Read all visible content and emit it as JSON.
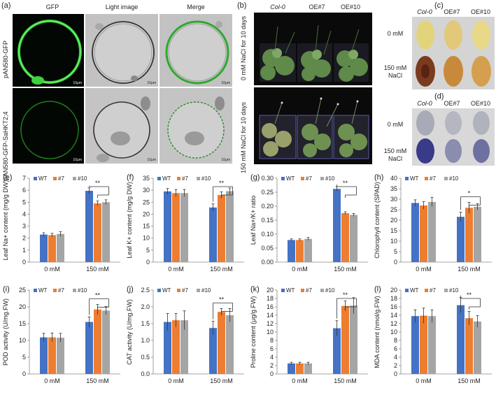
{
  "panel_a": {
    "label": "(a)",
    "col_headers": [
      "GFP",
      "Light image",
      "Merge"
    ],
    "row_labels": [
      "pAN580-GFP",
      "pAN580-GFP-SaHKT2;4"
    ],
    "scale_label": "10μm"
  },
  "panel_b": {
    "label": "(b)",
    "col_headers": [
      "Col-0",
      "OE#7",
      "OE#10"
    ],
    "row_labels": [
      "0 mM NaCl for 10 days",
      "150 mM NaCl for 10 days"
    ]
  },
  "panel_c": {
    "label": "(c)",
    "col_headers": [
      "Col-0",
      "OE#7",
      "OE#10"
    ],
    "row_labels": [
      "0 mM",
      "150 mM",
      "NaCl"
    ]
  },
  "panel_d": {
    "label": "(d)",
    "col_headers": [
      "Col-0",
      "OE#7",
      "OE#10"
    ],
    "row_labels": [
      "0 mM",
      "150 mM",
      "NaCl"
    ]
  },
  "colors": {
    "WT": "#4472C4",
    "#7": "#ED7D31",
    "#10": "#A5A5A5"
  },
  "chart_data": [
    {
      "id": "e",
      "label": "(e)",
      "type": "bar",
      "categories": [
        "0 mM",
        "150 mM"
      ],
      "series": [
        {
          "name": "WT",
          "values": [
            2.3,
            5.95
          ],
          "err": [
            0.15,
            0.25
          ]
        },
        {
          "name": "#7",
          "values": [
            2.25,
            4.9
          ],
          "err": [
            0.15,
            0.2
          ]
        },
        {
          "name": "#10",
          "values": [
            2.35,
            5.0
          ],
          "err": [
            0.2,
            0.2
          ]
        }
      ],
      "ylabel": "Leaf Na+ content (mg/g DW)",
      "ylim": [
        0,
        7
      ],
      "yticks": [
        0,
        1,
        2,
        3,
        4,
        5,
        6,
        7
      ],
      "ydec": 0,
      "sig": "**"
    },
    {
      "id": "f",
      "label": "(f)",
      "type": "bar",
      "categories": [
        "0 mM",
        "150 mM"
      ],
      "series": [
        {
          "name": "WT",
          "values": [
            29.5,
            22.8
          ],
          "err": [
            1.2,
            1.5
          ]
        },
        {
          "name": "#7",
          "values": [
            28.8,
            28.0
          ],
          "err": [
            1.5,
            1.3
          ]
        },
        {
          "name": "#10",
          "values": [
            28.8,
            29.6
          ],
          "err": [
            1.5,
            1.3
          ]
        }
      ],
      "ylabel": "Leaf K+ content (mg/g DW)",
      "ylim": [
        0,
        35
      ],
      "yticks": [
        0,
        5,
        10,
        15,
        20,
        25,
        30,
        35
      ],
      "ydec": 0,
      "sig": "**"
    },
    {
      "id": "g",
      "label": "(g)",
      "type": "bar",
      "categories": [
        "0 mM",
        "150 mM"
      ],
      "series": [
        {
          "name": "WT",
          "values": [
            0.079,
            0.262
          ],
          "err": [
            0.004,
            0.008
          ]
        },
        {
          "name": "#7",
          "values": [
            0.079,
            0.175
          ],
          "err": [
            0.004,
            0.005
          ]
        },
        {
          "name": "#10",
          "values": [
            0.083,
            0.169
          ],
          "err": [
            0.005,
            0.005
          ]
        }
      ],
      "ylabel": "Leaf Na+/K+ ratio",
      "ylim": [
        0,
        0.3
      ],
      "yticks": [
        0,
        0.05,
        0.1,
        0.15,
        0.2,
        0.25,
        0.3
      ],
      "ydec": 2,
      "sig": "**"
    },
    {
      "id": "h",
      "label": "(h)",
      "type": "bar",
      "categories": [
        "0 mM",
        "150 mM"
      ],
      "series": [
        {
          "name": "WT",
          "values": [
            28.2,
            21.6
          ],
          "err": [
            1.5,
            2.2
          ]
        },
        {
          "name": "#7",
          "values": [
            27.0,
            25.9
          ],
          "err": [
            1.8,
            2.6
          ]
        },
        {
          "name": "#10",
          "values": [
            28.7,
            26.4
          ],
          "err": [
            2.2,
            1.5
          ]
        }
      ],
      "ylabel": "Chlorophyll content (SPAD)",
      "ylim": [
        0,
        40
      ],
      "yticks": [
        0,
        5,
        10,
        15,
        20,
        25,
        30,
        35,
        40
      ],
      "ydec": 0,
      "sig": "*"
    },
    {
      "id": "i",
      "label": "(i)",
      "type": "bar",
      "categories": [
        "0 mM",
        "150 mM"
      ],
      "series": [
        {
          "name": "WT",
          "values": [
            10.9,
            15.5
          ],
          "err": [
            1.2,
            1.5
          ]
        },
        {
          "name": "#7",
          "values": [
            10.9,
            19.2
          ],
          "err": [
            1.3,
            1.5
          ]
        },
        {
          "name": "#10",
          "values": [
            10.8,
            18.9
          ],
          "err": [
            1.3,
            1.2
          ]
        }
      ],
      "ylabel": "POD activity (U/mg.FW)",
      "ylim": [
        0,
        25
      ],
      "yticks": [
        0,
        5,
        10,
        15,
        20,
        25
      ],
      "ydec": 0,
      "sig": "**"
    },
    {
      "id": "j",
      "label": "(j)",
      "type": "bar",
      "categories": [
        "0 mM",
        "150 mM"
      ],
      "series": [
        {
          "name": "WT",
          "values": [
            1.55,
            1.37
          ],
          "err": [
            0.25,
            0.2
          ]
        },
        {
          "name": "#7",
          "values": [
            1.6,
            1.85
          ],
          "err": [
            0.2,
            0.1
          ]
        },
        {
          "name": "#10",
          "values": [
            1.6,
            1.75
          ],
          "err": [
            0.28,
            0.2
          ]
        }
      ],
      "ylabel": "CAT activity (U/mg.FW)",
      "ylim": [
        0,
        2.5
      ],
      "yticks": [
        0,
        0.5,
        1,
        1.5,
        2,
        2.5
      ],
      "ydec": 1,
      "sig": "**"
    },
    {
      "id": "k",
      "label": "(k)",
      "type": "bar",
      "categories": [
        "0 mM",
        "150 mM"
      ],
      "series": [
        {
          "name": "WT",
          "values": [
            2.5,
            10.9
          ],
          "err": [
            0.3,
            1.8
          ]
        },
        {
          "name": "#7",
          "values": [
            2.5,
            16.2
          ],
          "err": [
            0.3,
            1.2
          ]
        },
        {
          "name": "#10",
          "values": [
            2.5,
            16.3
          ],
          "err": [
            0.3,
            1.9
          ]
        }
      ],
      "ylabel": "Proline content (μg/g.FW)",
      "ylim": [
        0,
        20
      ],
      "yticks": [
        0,
        2,
        4,
        6,
        8,
        10,
        12,
        14,
        16,
        18,
        20
      ],
      "ydec": 0,
      "sig": "**"
    },
    {
      "id": "l",
      "label": "(l)",
      "type": "bar",
      "categories": [
        "0 mM",
        "150 mM"
      ],
      "series": [
        {
          "name": "WT",
          "values": [
            13.8,
            16.4
          ],
          "err": [
            1.5,
            1.8
          ]
        },
        {
          "name": "#7",
          "values": [
            13.9,
            13.3
          ],
          "err": [
            1.8,
            1.6
          ]
        },
        {
          "name": "#10",
          "values": [
            13.8,
            12.5
          ],
          "err": [
            1.5,
            1.4
          ]
        }
      ],
      "ylabel": "MDA content (nmol/g.FW)",
      "ylim": [
        0,
        20
      ],
      "yticks": [
        0,
        2,
        4,
        6,
        8,
        10,
        12,
        14,
        16,
        18,
        20
      ],
      "ydec": 0,
      "sig": "**"
    }
  ]
}
